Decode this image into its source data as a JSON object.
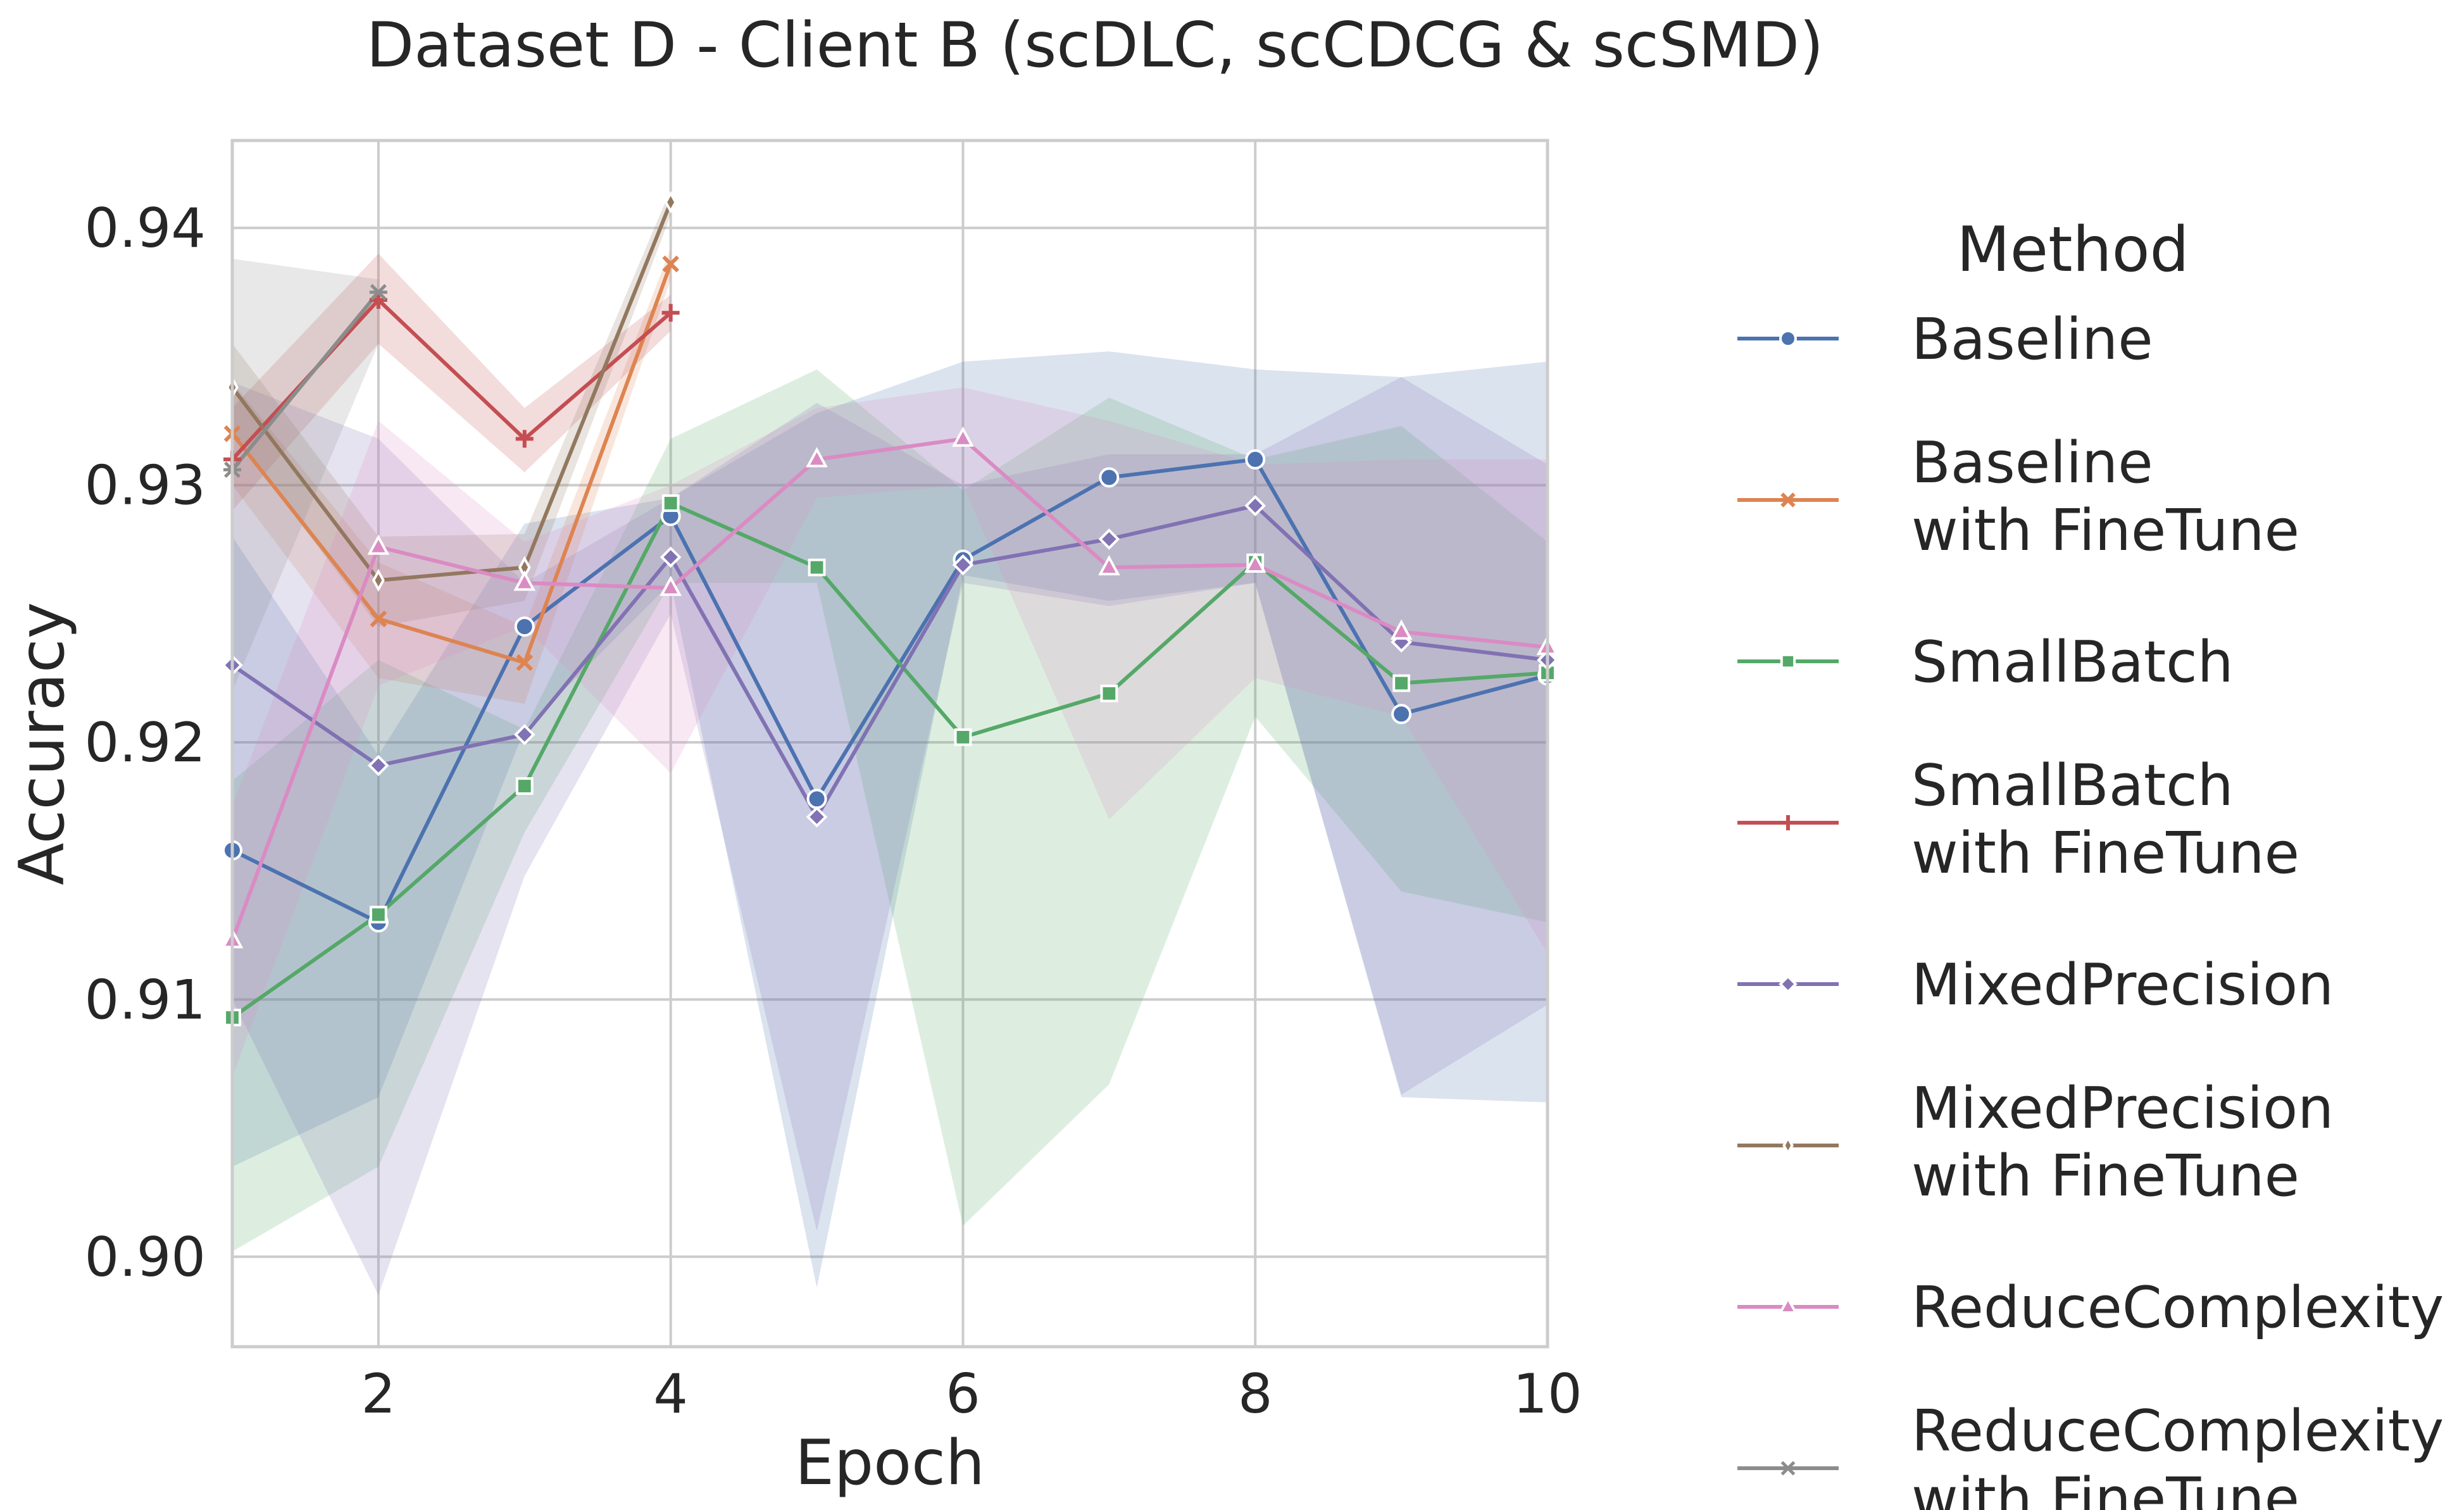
{
  "chart_data": {
    "type": "line",
    "title": "Dataset D - Client B (scDLC, scCDCG & scSMD)",
    "xlabel": "Epoch",
    "ylabel": "Accuracy",
    "xlim": [
      1,
      10
    ],
    "ylim": [
      0.8965,
      0.9434
    ],
    "xticks": [
      2,
      4,
      6,
      8,
      10
    ],
    "xtick_labels": [
      "2",
      "4",
      "6",
      "8",
      "10"
    ],
    "yticks": [
      0.9,
      0.91,
      0.92,
      0.93,
      0.94
    ],
    "ytick_labels": [
      "0.90",
      "0.91",
      "0.92",
      "0.93",
      "0.94"
    ],
    "grid": true,
    "legend": {
      "title": "Method",
      "placement": "outside-right"
    },
    "series": [
      {
        "name": "Baseline",
        "color": "#4c72b0",
        "marker": "circle",
        "x": [
          1,
          2,
          3,
          4,
          5,
          6,
          7,
          8,
          9,
          10
        ],
        "y": [
          0.9158,
          0.913,
          0.9245,
          0.9288,
          0.9178,
          0.9271,
          0.9303,
          0.931,
          0.9211,
          0.9226
        ],
        "lower": [
          0.9035,
          0.9062,
          0.9205,
          0.9262,
          0.8988,
          0.9265,
          0.9255,
          0.9262,
          0.9062,
          0.906
        ],
        "upper": [
          0.928,
          0.9195,
          0.9285,
          0.9295,
          0.9328,
          0.9348,
          0.9352,
          0.9345,
          0.9342,
          0.9348
        ]
      },
      {
        "name": "Baseline\nwith FineTune",
        "color": "#dd8452",
        "marker": "x",
        "x": [
          1,
          2,
          3,
          4
        ],
        "y": [
          0.932,
          0.9248,
          0.9231,
          0.9386
        ],
        "lower": [
          0.93,
          0.9225,
          0.9215,
          0.938
        ],
        "upper": [
          0.934,
          0.927,
          0.9245,
          0.9392
        ]
      },
      {
        "name": "SmallBatch",
        "color": "#55a868",
        "marker": "square",
        "x": [
          1,
          2,
          3,
          4,
          5,
          6,
          7,
          8,
          9,
          10
        ],
        "y": [
          0.9093,
          0.9133,
          0.9183,
          0.9293,
          0.9268,
          0.9202,
          0.9219,
          0.927,
          0.9223,
          0.9227
        ],
        "lower": [
          0.9002,
          0.9035,
          0.9165,
          0.9262,
          0.9262,
          0.9012,
          0.9067,
          0.921,
          0.9142,
          0.913
        ],
        "upper": [
          0.9185,
          0.9232,
          0.9205,
          0.9318,
          0.9345,
          0.9298,
          0.9334,
          0.931,
          0.9323,
          0.9278
        ]
      },
      {
        "name": "SmallBatch\nwith FineTune",
        "color": "#c44e52",
        "marker": "plus",
        "x": [
          1,
          2,
          3,
          4
        ],
        "y": [
          0.931,
          0.9372,
          0.9318,
          0.9367
        ],
        "lower": [
          0.929,
          0.9355,
          0.9305,
          0.936
        ],
        "upper": [
          0.933,
          0.939,
          0.933,
          0.9374
        ]
      },
      {
        "name": "MixedPrecision",
        "color": "#8172b3",
        "marker": "diamond",
        "x": [
          1,
          2,
          3,
          4,
          5,
          6,
          7,
          8,
          9,
          10
        ],
        "y": [
          0.923,
          0.9191,
          0.9203,
          0.9272,
          0.9171,
          0.9269,
          0.9279,
          0.9292,
          0.9239,
          0.9232
        ],
        "lower": [
          0.91,
          0.8985,
          0.9148,
          0.925,
          0.901,
          0.9262,
          0.9253,
          0.9262,
          0.9063,
          0.9098
        ],
        "upper": [
          0.934,
          0.9318,
          0.9262,
          0.9295,
          0.9332,
          0.93,
          0.9312,
          0.9312,
          0.9342,
          0.9308
        ]
      },
      {
        "name": "MixedPrecision\nwith FineTune",
        "color": "#937860",
        "marker": "thin-diamond",
        "x": [
          1,
          2,
          3,
          4
        ],
        "y": [
          0.9338,
          0.9263,
          0.9268,
          0.941
        ],
        "lower": [
          0.932,
          0.9245,
          0.9255,
          0.9405
        ],
        "upper": [
          0.9355,
          0.928,
          0.9281,
          0.9415
        ]
      },
      {
        "name": "ReduceComplexity",
        "color": "#da8bc3",
        "marker": "triangle",
        "x": [
          1,
          2,
          3,
          4,
          5,
          6,
          7,
          8,
          9,
          10
        ],
        "y": [
          0.9123,
          0.9276,
          0.9262,
          0.926,
          0.931,
          0.9318,
          0.9268,
          0.9269,
          0.9243,
          0.9237
        ],
        "lower": [
          0.907,
          0.9222,
          0.9245,
          0.9188,
          0.9295,
          0.93,
          0.917,
          0.9225,
          0.921,
          0.9118
        ],
        "upper": [
          0.9175,
          0.9325,
          0.9278,
          0.93,
          0.933,
          0.9338,
          0.9325,
          0.9308,
          0.931,
          0.931
        ]
      },
      {
        "name": "ReduceComplexity\nwith FineTune",
        "color": "#8c8c8c",
        "marker": "star",
        "x": [
          1,
          2
        ],
        "y": [
          0.9306,
          0.9375
        ],
        "lower": [
          0.922,
          0.9355
        ],
        "upper": [
          0.9388,
          0.938
        ]
      }
    ]
  }
}
